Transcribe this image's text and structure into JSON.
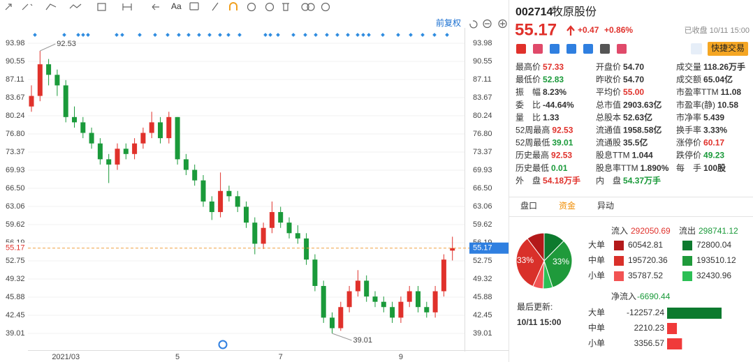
{
  "toolbar": {
    "text_tool": "Aa",
    "adjust": "前复权"
  },
  "chart_data": {
    "type": "candlestick",
    "up_color": "#e0312b",
    "down_color": "#1a9a3a",
    "grid": true,
    "categories": [
      null,
      null,
      null,
      null,
      "2021/03",
      null,
      null,
      null,
      null,
      null,
      null,
      null,
      null,
      null,
      null,
      null,
      null,
      "5",
      null,
      null,
      null,
      null,
      null,
      null,
      null,
      null,
      null,
      null,
      null,
      "7",
      null,
      null,
      null,
      null,
      null,
      null,
      null,
      null,
      null,
      null,
      null,
      null,
      null,
      "9",
      null,
      null,
      null,
      null,
      null,
      null
    ],
    "candles": [
      [
        82,
        86,
        81,
        84
      ],
      [
        84,
        92.53,
        83,
        90
      ],
      [
        90,
        91,
        86,
        88
      ],
      [
        88,
        89,
        84,
        86
      ],
      [
        86,
        87,
        79,
        80
      ],
      [
        80,
        82,
        78,
        79
      ],
      [
        79,
        80,
        76,
        77
      ],
      [
        77,
        78,
        74,
        75
      ],
      [
        75,
        76,
        71,
        72
      ],
      [
        72,
        73,
        67.5,
        71
      ],
      [
        71,
        75,
        70,
        74
      ],
      [
        74,
        75,
        72,
        73
      ],
      [
        73,
        76,
        72,
        75
      ],
      [
        75,
        78,
        74,
        77
      ],
      [
        77,
        81,
        76,
        79
      ],
      [
        79,
        80,
        75,
        76
      ],
      [
        76,
        81,
        75,
        80
      ],
      [
        80,
        80,
        71,
        72
      ],
      [
        72,
        73,
        69,
        70
      ],
      [
        70,
        71,
        67,
        68
      ],
      [
        68,
        69,
        63,
        64
      ],
      [
        64,
        65,
        60.5,
        62
      ],
      [
        62,
        69.5,
        61,
        66
      ],
      [
        66,
        67,
        64,
        65
      ],
      [
        65,
        66,
        62,
        63
      ],
      [
        63,
        64,
        59,
        60
      ],
      [
        60,
        61,
        54,
        56
      ],
      [
        56,
        60,
        55,
        59
      ],
      [
        59,
        64,
        58,
        62
      ],
      [
        62,
        63,
        59,
        60
      ],
      [
        60,
        61,
        57,
        58
      ],
      [
        58,
        59.5,
        56,
        57
      ],
      [
        57,
        58,
        52,
        53
      ],
      [
        53,
        54,
        47,
        48
      ],
      [
        48,
        49,
        41,
        42
      ],
      [
        42,
        43,
        39.01,
        40
      ],
      [
        40,
        45,
        39.5,
        44
      ],
      [
        44,
        48,
        43,
        47
      ],
      [
        47,
        51,
        46,
        49
      ],
      [
        49,
        50,
        45,
        46
      ],
      [
        46,
        47,
        44,
        45
      ],
      [
        45,
        46,
        43,
        44
      ],
      [
        44,
        45,
        41,
        42
      ],
      [
        42,
        46,
        41,
        45
      ],
      [
        45,
        48,
        44,
        47
      ],
      [
        47,
        48,
        43,
        44
      ],
      [
        44,
        45,
        42,
        43
      ],
      [
        43,
        48,
        42,
        47
      ],
      [
        47,
        54,
        46,
        53
      ],
      [
        54.7,
        57.33,
        52.83,
        55.17
      ]
    ],
    "ylim": [
      35.84,
      96.23
    ],
    "yticks": [
      93.98,
      90.55,
      87.11,
      83.67,
      80.24,
      {
        "value": 76.8,
        "label": "76.80"
      },
      73.37,
      69.93,
      {
        "value": 66.5,
        "label": "66.50"
      },
      63.06,
      59.62,
      56.19,
      52.75,
      49.32,
      45.88,
      42.45,
      39.01
    ]
  },
  "quote": {
    "code": "002714",
    "name": "牧原股份",
    "price": 55.17,
    "change": "+0.47",
    "pct": "+0.86%",
    "status": "已收盘 10/11 15:00",
    "trade": "快捷交易"
  },
  "stats": [
    [
      {
        "label": "最高价",
        "value": "57.33",
        "color": "#e0312b"
      },
      {
        "label": "最低价",
        "value": "52.83",
        "color": "#1a9a3a"
      },
      {
        "label": "振　幅",
        "value": "8.23%"
      },
      {
        "label": "委　比",
        "value": "-44.64%"
      },
      {
        "label": "量　比",
        "value": "1.33"
      },
      {
        "label": "52周最高",
        "value": "92.53",
        "color": "#e0312b"
      },
      {
        "label": "52周最低",
        "value": "39.01",
        "color": "#1a9a3a"
      },
      {
        "label": "历史最高",
        "value": "92.53",
        "color": "#e0312b"
      },
      {
        "label": "历史最低",
        "value": "0.01",
        "color": "#1a9a3a"
      },
      {
        "label": "外　盘",
        "value": "54.18万手",
        "color": "#e0312b"
      }
    ],
    [
      {
        "label": "开盘价",
        "value": "54.70"
      },
      {
        "label": "昨收价",
        "value": "54.70"
      },
      {
        "label": "平均价",
        "value": "55.00",
        "color": "#e0312b"
      },
      {
        "label": "总市值",
        "value": "2903.63亿"
      },
      {
        "label": "总股本",
        "value": "52.63亿"
      },
      {
        "label": "流通值",
        "value": "1958.58亿"
      },
      {
        "label": "流通股",
        "value": "35.5亿"
      },
      {
        "label": "股息TTM",
        "value": "1.044"
      },
      {
        "label": "股息率TTM",
        "value": "1.890%"
      },
      {
        "label": "内　盘",
        "value": "54.37万手",
        "color": "#1a9a3a"
      }
    ],
    [
      {
        "label": "成交量",
        "value": "118.26万手"
      },
      {
        "label": "成交额",
        "value": "65.04亿"
      },
      {
        "label": "市盈率TTM",
        "value": "11.08"
      },
      {
        "label": "市盈率(静)",
        "value": "10.58"
      },
      {
        "label": "市净率",
        "value": "5.439"
      },
      {
        "label": "换手率",
        "value": "3.33%"
      },
      {
        "label": "涨停价",
        "value": "60.17",
        "color": "#e0312b"
      },
      {
        "label": "跌停价",
        "value": "49.23",
        "color": "#1a9a3a"
      },
      {
        "label": "每　手",
        "value": "100股"
      }
    ]
  ],
  "tabs": [
    "盘口",
    "资金",
    "异动"
  ],
  "capital_flow": {
    "in_label": "流入",
    "in_total": 292050.69,
    "out_label": "流出",
    "out_total": 298741.12,
    "rows": [
      {
        "label": "大单",
        "in": 60542.81,
        "out": 72800.04
      },
      {
        "label": "中单",
        "in": 195720.36,
        "out": 193510.12
      },
      {
        "label": "小单",
        "in": 35787.52,
        "out": 32430.96
      }
    ],
    "pie_labels": [
      "33%",
      "33%"
    ],
    "in_colors": [
      "#b3191a",
      "#d9302a",
      "#f25353"
    ],
    "out_colors": [
      "#0d7a2e",
      "#1f9a3b",
      "#2cbf55"
    ],
    "net_label": "净流入",
    "net_total": -6690.44,
    "net_rows": [
      {
        "label": "大单",
        "value": -12257.24
      },
      {
        "label": "中单",
        "value": 2210.23
      },
      {
        "label": "小单",
        "value": 3356.57
      }
    ],
    "last_update_label": "最后更新:",
    "last_update": "10/11 15:00"
  }
}
